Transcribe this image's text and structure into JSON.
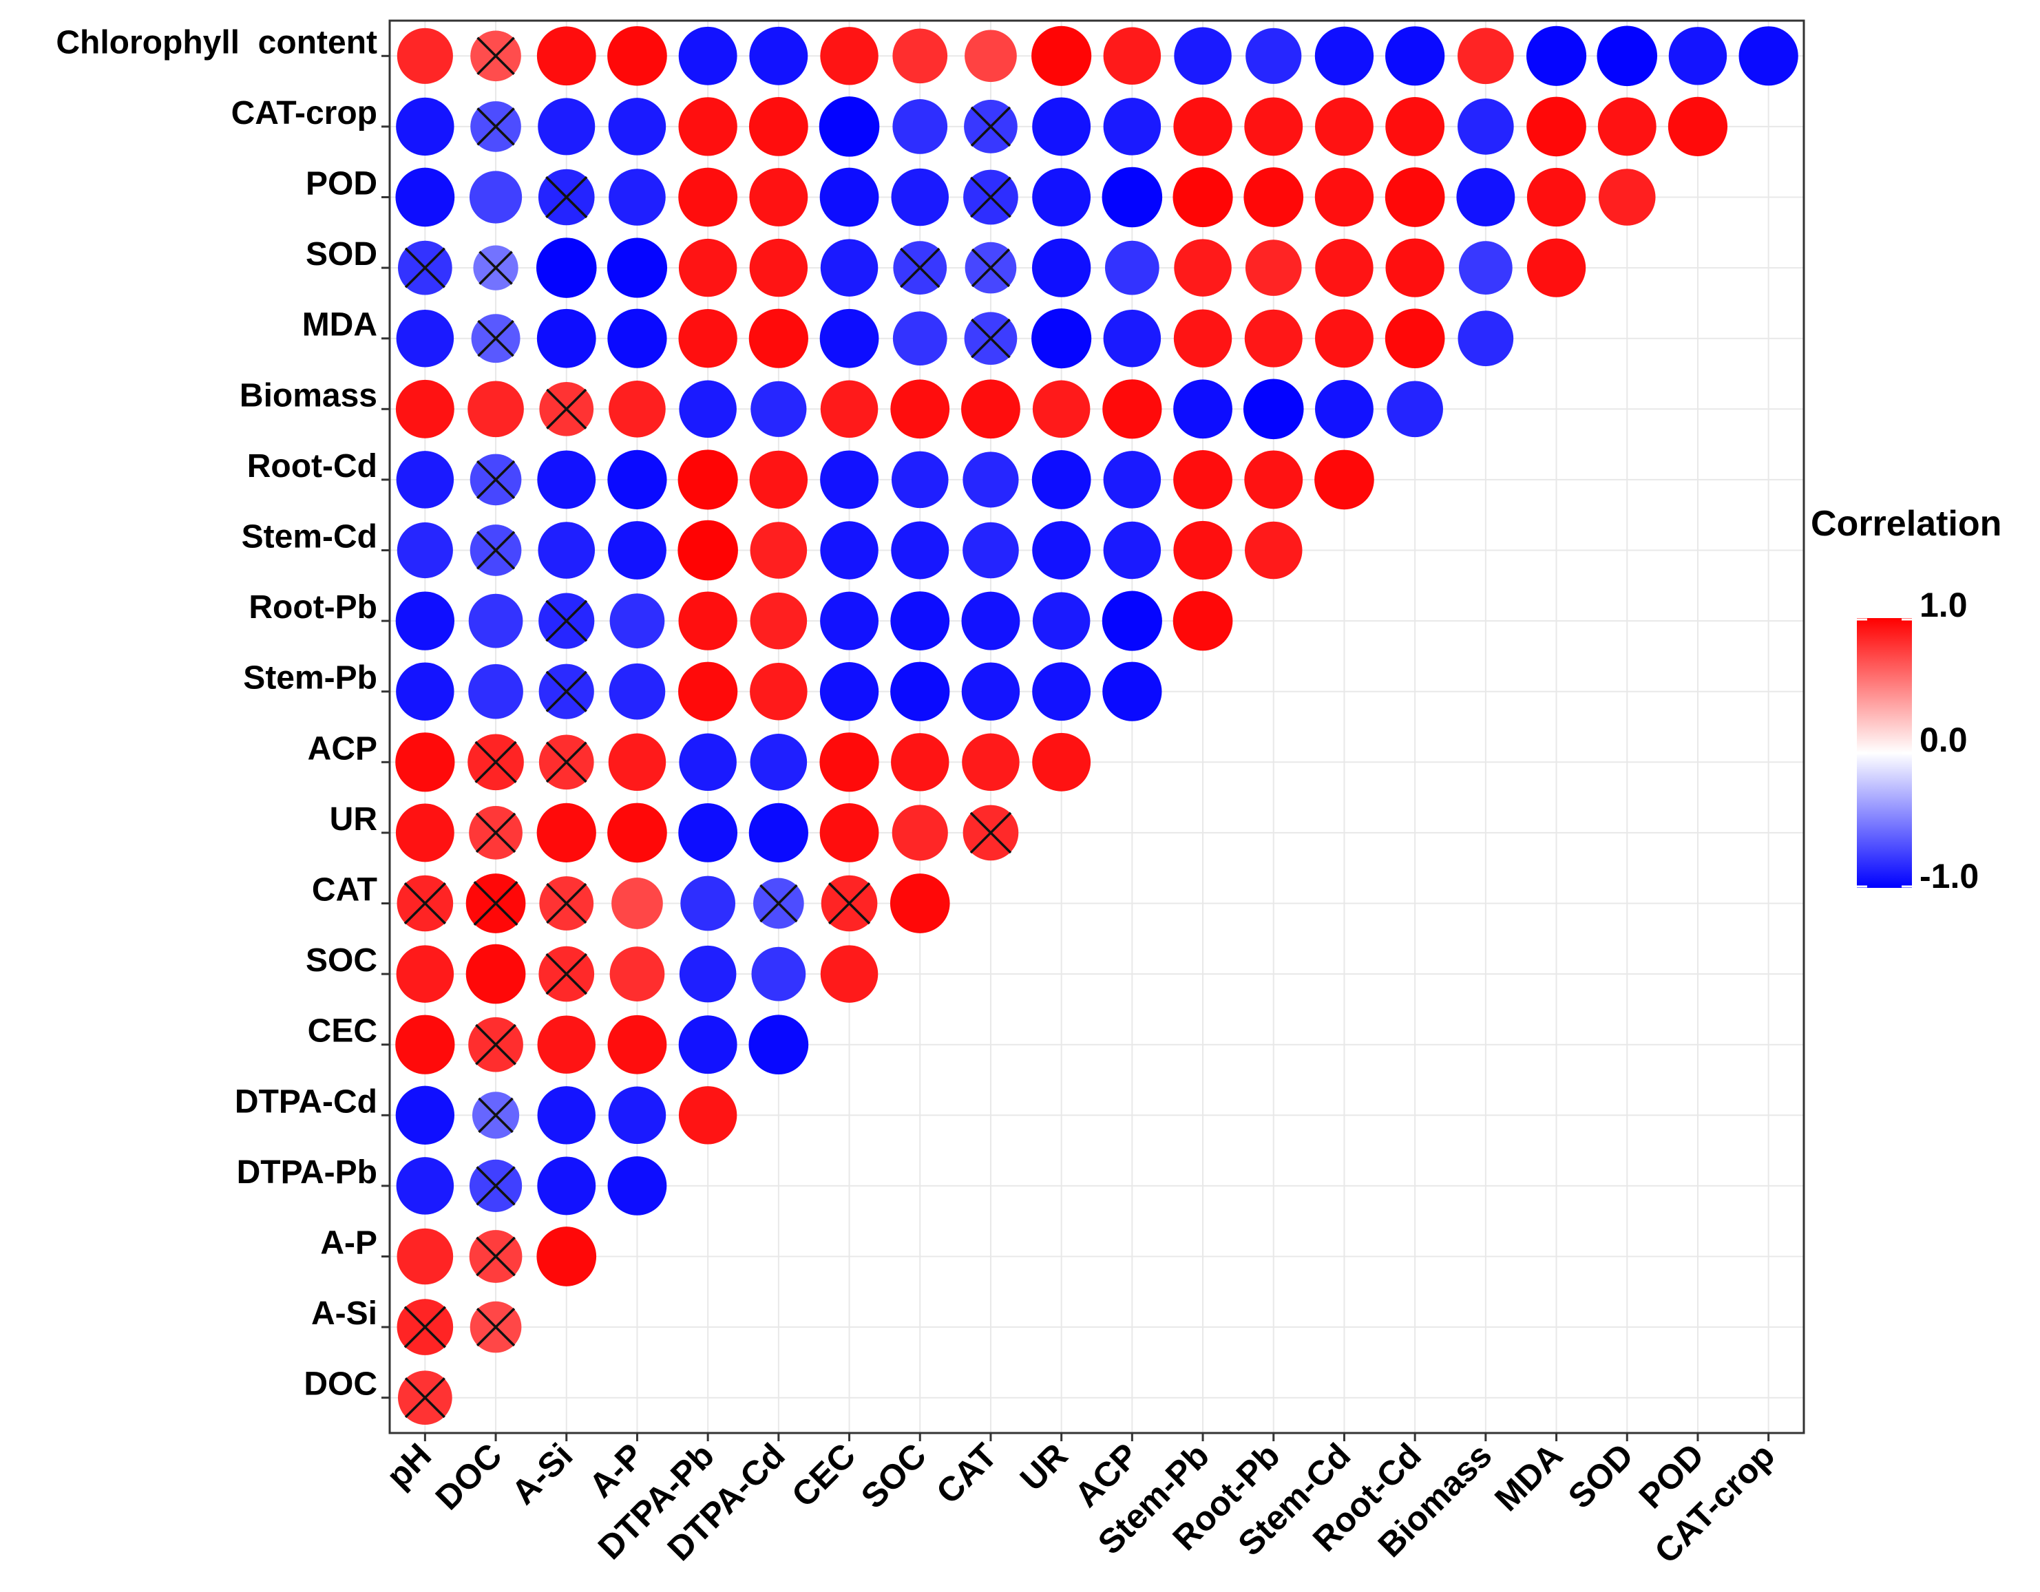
{
  "chart_data": {
    "type": "heatmap",
    "subtype": "correlation-circle-matrix",
    "title": "",
    "rows": [
      "Chlorophyll  content",
      "CAT-crop",
      "POD",
      "SOD",
      "MDA",
      "Biomass",
      "Root-Cd",
      "Stem-Cd",
      "Root-Pb",
      "Stem-Pb",
      "ACP",
      "UR",
      "CAT",
      "SOC",
      "CEC",
      "DTPA-Cd",
      "DTPA-Pb",
      "A-P",
      "A-Si",
      "DOC"
    ],
    "columns": [
      "pH",
      "DOC",
      "A-Si",
      "A-P",
      "DTPA-Pb",
      "DTPA-Cd",
      "CEC",
      "SOC",
      "CAT",
      "UR",
      "ACP",
      "Stem-Pb",
      "Root-Pb",
      "Stem-Cd",
      "Root-Cd",
      "Biomass",
      "MDA",
      "SOD",
      "POD",
      "CAT-crop"
    ],
    "values": [
      [
        0.85,
        0.7,
        0.95,
        0.97,
        -0.93,
        -0.93,
        0.92,
        0.82,
        0.74,
        0.98,
        0.9,
        -0.9,
        -0.85,
        -0.94,
        -0.96,
        0.86,
        -0.98,
        -0.99,
        -0.92,
        -0.96
      ],
      [
        -0.92,
        -0.7,
        -0.89,
        -0.9,
        0.94,
        0.95,
        -0.99,
        -0.82,
        -0.78,
        -0.93,
        -0.9,
        0.94,
        0.93,
        0.93,
        0.95,
        -0.86,
        0.97,
        0.93,
        0.96
      ],
      [
        -0.95,
        -0.75,
        -0.86,
        -0.88,
        0.95,
        0.93,
        -0.95,
        -0.9,
        -0.82,
        -0.93,
        -0.99,
        0.98,
        0.97,
        0.94,
        0.97,
        -0.93,
        0.94,
        0.88
      ],
      [
        -0.8,
        -0.55,
        -0.99,
        -0.98,
        0.92,
        0.92,
        -0.9,
        -0.78,
        -0.72,
        -0.94,
        -0.8,
        0.9,
        0.86,
        0.92,
        0.94,
        -0.78,
        0.94
      ],
      [
        -0.9,
        -0.65,
        -0.95,
        -0.96,
        0.94,
        0.96,
        -0.95,
        -0.8,
        -0.76,
        -0.98,
        -0.9,
        0.92,
        0.91,
        0.93,
        0.97,
        -0.84
      ],
      [
        0.93,
        0.86,
        0.8,
        0.88,
        -0.9,
        -0.85,
        0.9,
        0.95,
        0.95,
        0.9,
        0.96,
        -0.95,
        -0.99,
        -0.93,
        -0.86
      ],
      [
        -0.9,
        -0.72,
        -0.93,
        -0.96,
        0.98,
        0.92,
        -0.93,
        -0.88,
        -0.85,
        -0.95,
        -0.9,
        0.95,
        0.93,
        0.97
      ],
      [
        -0.85,
        -0.72,
        -0.88,
        -0.93,
        0.99,
        0.88,
        -0.92,
        -0.91,
        -0.86,
        -0.93,
        -0.9,
        0.94,
        0.9
      ],
      [
        -0.94,
        -0.8,
        -0.85,
        -0.82,
        0.94,
        0.88,
        -0.93,
        -0.95,
        -0.93,
        -0.9,
        -0.98,
        0.97
      ],
      [
        -0.92,
        -0.82,
        -0.83,
        -0.86,
        0.96,
        0.9,
        -0.94,
        -0.96,
        -0.92,
        -0.93,
        -0.96
      ],
      [
        0.96,
        0.86,
        0.82,
        0.9,
        -0.9,
        -0.88,
        0.96,
        0.92,
        0.9,
        0.93
      ],
      [
        0.93,
        0.78,
        0.96,
        0.97,
        -0.95,
        -0.96,
        0.95,
        0.85,
        0.84
      ],
      [
        0.86,
        0.97,
        0.8,
        0.72,
        -0.82,
        -0.7,
        0.86,
        0.97
      ],
      [
        0.9,
        0.97,
        0.84,
        0.82,
        -0.88,
        -0.8,
        0.9
      ],
      [
        0.96,
        0.82,
        0.92,
        0.95,
        -0.93,
        -0.97
      ],
      [
        -0.94,
        -0.6,
        -0.92,
        -0.9,
        0.92
      ],
      [
        -0.9,
        -0.75,
        -0.93,
        -0.95
      ],
      [
        0.86,
        0.76,
        0.97
      ],
      [
        0.86,
        0.72
      ],
      [
        0.8
      ]
    ],
    "crossed": [
      [
        1
      ],
      [
        1,
        8
      ],
      [
        2,
        8
      ],
      [
        0,
        1,
        7,
        8
      ],
      [
        1,
        8
      ],
      [
        2
      ],
      [
        1
      ],
      [
        1
      ],
      [
        2
      ],
      [
        2
      ],
      [
        1,
        2
      ],
      [
        1,
        8
      ],
      [
        0,
        1,
        2,
        5,
        6
      ],
      [
        2
      ],
      [
        1
      ],
      [
        1
      ],
      [
        1
      ],
      [
        1
      ],
      [
        0,
        1
      ],
      [
        0
      ]
    ],
    "legend": {
      "title": "Correlation",
      "ticks": [
        "1.0",
        "0.0",
        "-1.0"
      ],
      "min": -1,
      "max": 1
    },
    "colors": {
      "positive": "#ff0000",
      "zero": "#ffffff",
      "negative": "#0000ff",
      "grid": "#e8e8e8",
      "border": "#333333",
      "cross": "#111111"
    },
    "grid": true,
    "legend_position": "right"
  }
}
